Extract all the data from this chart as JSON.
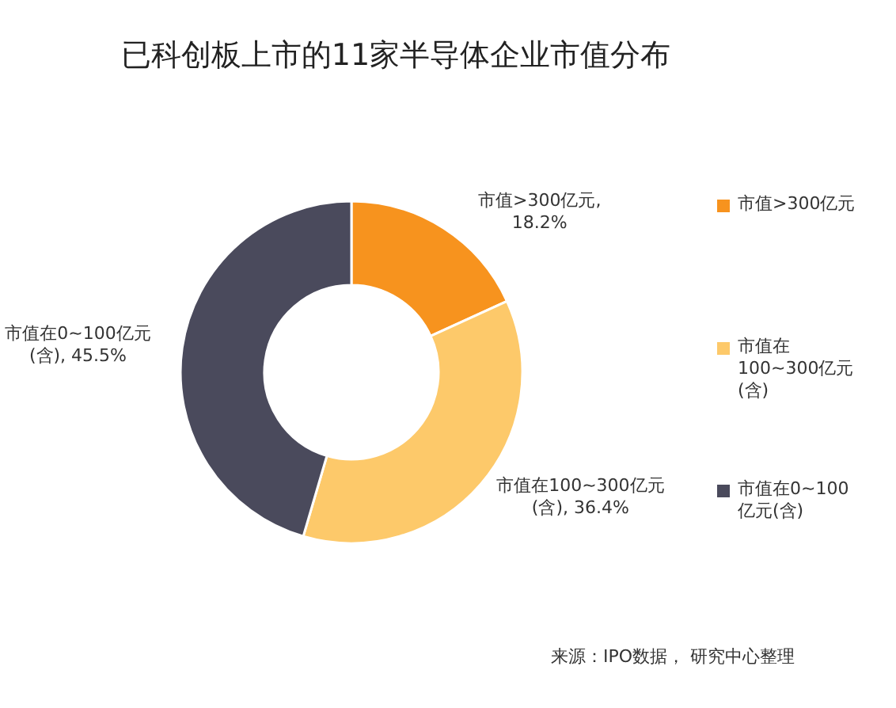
{
  "chart_data": {
    "type": "donut",
    "title": "已科创板上市的11家半导体企业市值分布",
    "categories": [
      "市值>300亿元",
      "市值在100~300亿元(含)",
      "市值在0~100亿元(含)"
    ],
    "values": [
      18.2,
      36.4,
      45.5
    ],
    "value_labels": [
      "市值>300亿元, 18.2%",
      "市值在100~300亿元(含), 36.4%",
      "市值在0~100亿元(含), 45.5%"
    ],
    "colors": [
      "#f7931e",
      "#fdc96a",
      "#4a4a5c"
    ],
    "legend": "right",
    "annotations": [
      "来源：IPO数据， 研究中心整理"
    ]
  }
}
